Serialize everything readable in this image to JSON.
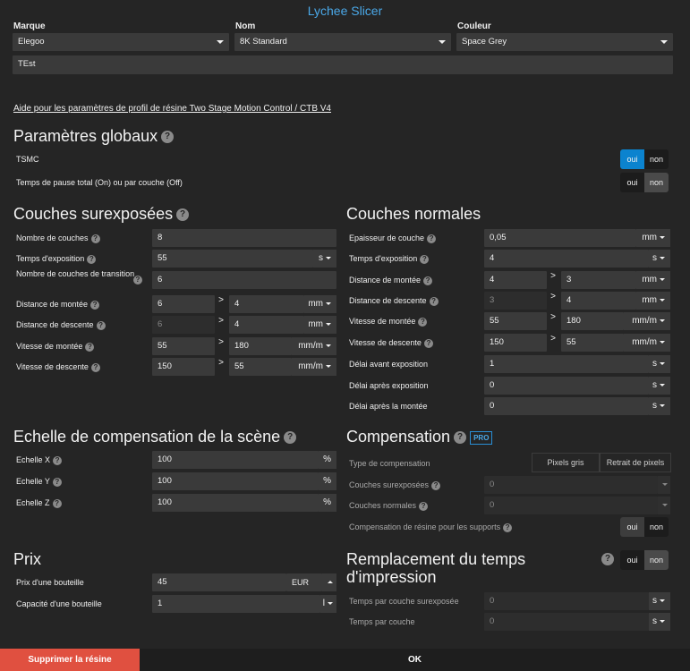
{
  "window": {
    "title": "Lychee Slicer"
  },
  "top": {
    "brand_label": "Marque",
    "brand_value": "Elegoo",
    "name_label": "Nom",
    "name_value": "8K Standard",
    "color_label": "Couleur",
    "color_value": "Space Grey",
    "profile_name": "TEst"
  },
  "help_link": "Aide pour les paramètres de profil de résine Two Stage Motion Control / CTB V4",
  "global": {
    "title": "Paramètres globaux",
    "tsmc_label": "TSMC",
    "pause_label": "Temps de pause total (On) ou par couche (Off)",
    "on": "oui",
    "off": "non"
  },
  "over": {
    "title": "Couches surexposées",
    "rows": [
      {
        "label": "Nombre de couches",
        "value": "8"
      },
      {
        "label": "Temps d'exposition",
        "value": "55",
        "unit": "s"
      },
      {
        "label": "Nombre de couches de transition",
        "value": "6"
      },
      {
        "label": "Distance de montée",
        "value": "6",
        "value2": "4",
        "unit": "mm"
      },
      {
        "label": "Distance de descente",
        "value": "6",
        "value2": "4",
        "unit": "mm"
      },
      {
        "label": "Vitesse de montée",
        "value": "55",
        "value2": "180",
        "unit": "mm/m"
      },
      {
        "label": "Vitesse de descente",
        "value": "150",
        "value2": "55",
        "unit": "mm/m"
      }
    ]
  },
  "normal": {
    "title": "Couches normales",
    "rows": [
      {
        "label": "Epaisseur de couche",
        "value": "0,05",
        "unit": "mm"
      },
      {
        "label": "Temps d'exposition",
        "value": "4",
        "unit": "s"
      },
      {
        "label": "Distance de montée",
        "value": "4",
        "value2": "3",
        "unit": "mm"
      },
      {
        "label": "Distance de descente",
        "value": "3",
        "value2": "4",
        "unit": "mm"
      },
      {
        "label": "Vitesse de montée",
        "value": "55",
        "value2": "180",
        "unit": "mm/m"
      },
      {
        "label": "Vitesse de descente",
        "value": "150",
        "value2": "55",
        "unit": "mm/m"
      },
      {
        "label": "Délai avant exposition",
        "value": "1",
        "unit": "s"
      },
      {
        "label": "Délai après exposition",
        "value": "0",
        "unit": "s"
      },
      {
        "label": "Délai après la montée",
        "value": "0",
        "unit": "s"
      }
    ]
  },
  "scale": {
    "title": "Echelle de compensation de la scène",
    "rows": [
      {
        "label": "Echelle X",
        "value": "100",
        "unit": "%"
      },
      {
        "label": "Echelle Y",
        "value": "100",
        "unit": "%"
      },
      {
        "label": "Echelle Z",
        "value": "100",
        "unit": "%"
      }
    ]
  },
  "comp": {
    "title": "Compensation",
    "pro": "PRO",
    "type_label": "Type de compensation",
    "type_opt1": "Pixels gris",
    "type_opt2": "Retrait de pixels",
    "over_label": "Couches surexposées",
    "over_value": "0",
    "normal_label": "Couches normales",
    "normal_value": "0",
    "supports_label": "Compensation de résine pour les supports",
    "on": "oui",
    "off": "non"
  },
  "price": {
    "title": "Prix",
    "bottle_price_label": "Prix d'une bouteille",
    "bottle_price_value": "45",
    "currency": "EUR",
    "capacity_label": "Capacité d'une bouteille",
    "capacity_value": "1",
    "capacity_unit": "l"
  },
  "replace": {
    "title": "Remplacement du temps d'impression",
    "on": "oui",
    "off": "non",
    "over_label": "Temps par couche surexposée",
    "over_value": "0",
    "over_unit": "s",
    "layer_label": "Temps par couche",
    "layer_value": "0",
    "layer_unit": "s"
  },
  "footer": {
    "delete": "Supprimer la résine",
    "ok": "OK"
  }
}
